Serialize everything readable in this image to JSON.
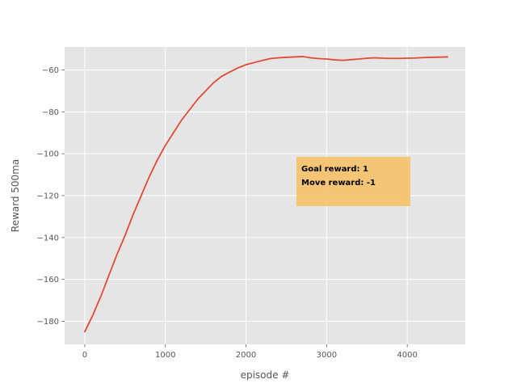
{
  "chart_data": {
    "type": "line",
    "title": "",
    "xlabel": "episode #",
    "ylabel": "Reward 500ma",
    "xlim": [
      -250,
      4720
    ],
    "ylim": [
      -191,
      -49
    ],
    "xticks": [
      0,
      1000,
      2000,
      3000,
      4000
    ],
    "yticks": [
      -180,
      -160,
      -140,
      -120,
      -100,
      -80,
      -60
    ],
    "xtick_labels": [
      "0",
      "1000",
      "2000",
      "3000",
      "4000"
    ],
    "ytick_labels": [
      "−180",
      "−160",
      "−140",
      "−120",
      "−100",
      "−80",
      "−60"
    ],
    "grid": true,
    "style": "ggplot",
    "colors": {
      "background": "#e5e5e5",
      "grid": "#ffffff",
      "line": "#e24a33",
      "annotation_box": "#f5c26b",
      "tick": "#555555"
    },
    "series": [
      {
        "x": [
          0,
          100,
          200,
          300,
          400,
          500,
          600,
          700,
          800,
          900,
          1000,
          1100,
          1200,
          1300,
          1400,
          1500,
          1600,
          1700,
          1800,
          1900,
          2000,
          2100,
          2200,
          2300,
          2400,
          2500,
          2600,
          2700,
          2800,
          2900,
          3000,
          3100,
          3200,
          3300,
          3400,
          3500,
          3600,
          3700,
          3800,
          3900,
          4000,
          4100,
          4200,
          4300,
          4400,
          4500
        ],
        "y": [
          -185,
          -177,
          -168,
          -158,
          -148,
          -139,
          -129,
          -120,
          -111,
          -103,
          -96,
          -90,
          -84,
          -79,
          -74,
          -70,
          -66,
          -63,
          -61,
          -59,
          -57.5,
          -56.5,
          -55.5,
          -54.6,
          -54.2,
          -54,
          -53.8,
          -53.6,
          -54.2,
          -54.6,
          -54.8,
          -55.2,
          -55.4,
          -55.1,
          -54.8,
          -54.4,
          -54.2,
          -54.4,
          -54.5,
          -54.5,
          -54.4,
          -54.3,
          -54.1,
          -54,
          -53.9,
          -53.8
        ]
      }
    ],
    "annotation": {
      "lines": [
        "Goal reward: 1",
        "Move reward: -1"
      ]
    }
  }
}
